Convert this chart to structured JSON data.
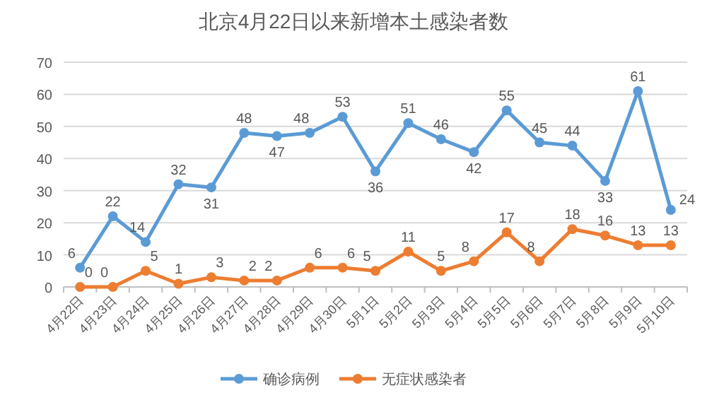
{
  "chart_data": {
    "type": "line",
    "title": "北京4月22日以来新增本土感染者数",
    "categories": [
      "4月22日",
      "4月23日",
      "4月24日",
      "4月25日",
      "4月26日",
      "4月27日",
      "4月28日",
      "4月29日",
      "4月30日",
      "5月1日",
      "5月2日",
      "5月3日",
      "5月4日",
      "5月5日",
      "5月6日",
      "5月7日",
      "5月8日",
      "5月9日",
      "5月10日"
    ],
    "series": [
      {
        "name": "确诊病例",
        "color": "#5b9bd5",
        "values": [
          6,
          22,
          14,
          32,
          31,
          48,
          47,
          48,
          53,
          36,
          51,
          46,
          42,
          55,
          45,
          44,
          33,
          61,
          24
        ]
      },
      {
        "name": "无症状感染者",
        "color": "#ed7d31",
        "values": [
          0,
          0,
          5,
          1,
          3,
          2,
          2,
          6,
          6,
          5,
          11,
          5,
          8,
          17,
          8,
          18,
          16,
          13,
          13
        ]
      }
    ],
    "ylim": [
      0,
      70
    ],
    "yticks": [
      0,
      10,
      20,
      30,
      40,
      50,
      60,
      70
    ],
    "grid": "y",
    "legend": "bottom",
    "marker": "circle",
    "data_labels": true
  }
}
